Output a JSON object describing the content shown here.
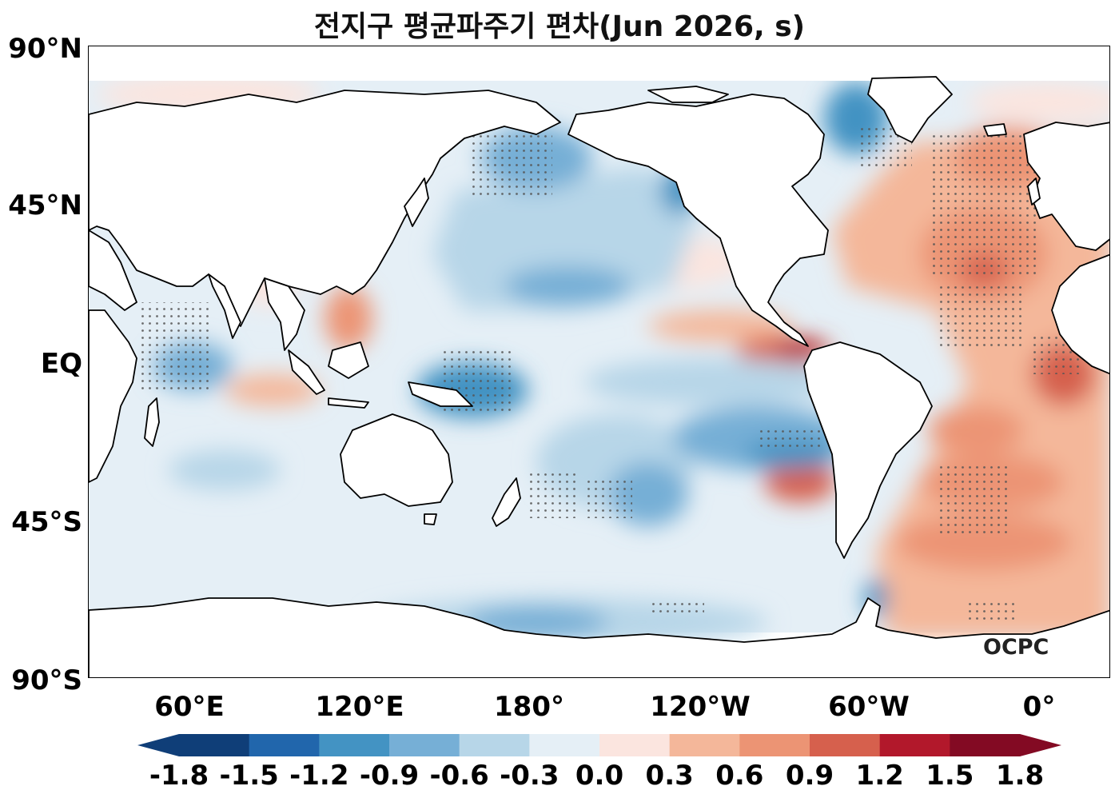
{
  "title": "전지구 평균파주기 편차(Jun 2026, s)",
  "y_axis_labels": [
    "90°N",
    "45°N",
    "EQ",
    "45°S",
    "90°S"
  ],
  "x_axis_labels": [
    "60°E",
    "120°E",
    "180°",
    "120°W",
    "60°W",
    "0°"
  ],
  "colorbar": {
    "labels": [
      "-1.8",
      "-1.5",
      "-1.2",
      "-0.9",
      "-0.6",
      "-0.3",
      "0.0",
      "0.3",
      "0.6",
      "0.9",
      "1.2",
      "1.5",
      "1.8"
    ],
    "colors": [
      "#0f3e78",
      "#2166ac",
      "#4393c3",
      "#76afd6",
      "#b7d6e8",
      "#e5eff6",
      "#fbe5df",
      "#f4b79a",
      "#ec9474",
      "#d6604d",
      "#b2182b",
      "#830a23"
    ],
    "extend": "both"
  },
  "logo": "OCPC",
  "colors": {
    "land": "#ffffff",
    "coast": "#000000",
    "stipple": "#555555"
  }
}
